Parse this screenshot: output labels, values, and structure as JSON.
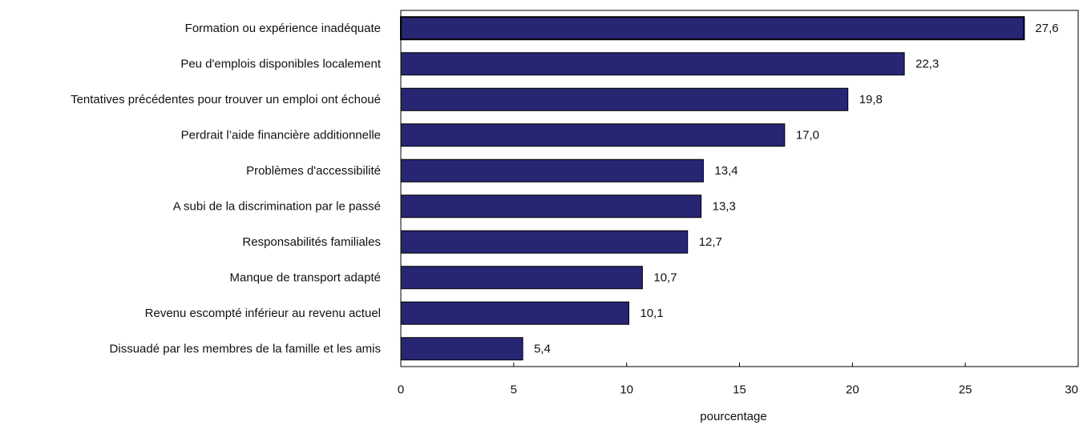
{
  "chart_data": {
    "type": "bar",
    "orientation": "horizontal",
    "categories": [
      "Formation ou expérience inadéquate",
      "Peu d'emplois disponibles localement",
      "Tentatives précédentes pour trouver un emploi ont échoué",
      "Perdrait l’aide financière additionnelle",
      "Problèmes d'accessibilité",
      "A subi de la discrimination par le passé",
      "Responsabilités familiales",
      "Manque de transport adapté",
      "Revenu escompté inférieur au revenu actuel",
      "Dissuadé par les membres de la famille et les amis"
    ],
    "values": [
      27.6,
      22.3,
      19.8,
      17.0,
      13.4,
      13.3,
      12.7,
      10.7,
      10.1,
      5.4
    ],
    "value_labels": [
      "27,6",
      "22,3",
      "19,8",
      "17,0",
      "13,4",
      "13,3",
      "12,7",
      "10,7",
      "10,1",
      "5,4"
    ],
    "xticks": [
      0,
      5,
      10,
      15,
      20,
      25,
      30
    ],
    "xtick_labels": [
      "0",
      "5",
      "10",
      "15",
      "20",
      "25",
      "30"
    ],
    "xlim": [
      0,
      30
    ],
    "xlabel": "pourcentage",
    "ylabel": "",
    "title": "",
    "grid": false,
    "bar_color": "#262673"
  }
}
